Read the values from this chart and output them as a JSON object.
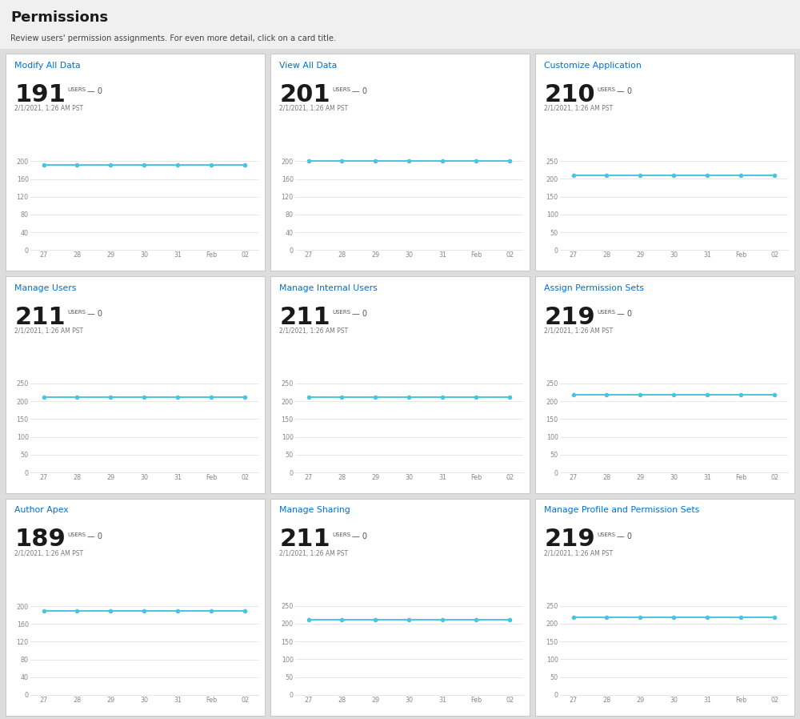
{
  "title": "Permissions",
  "subtitle": "Review users' permission assignments. For even more detail, click on a card title.",
  "header_bg": "#f0f0f0",
  "card_bg": "#ffffff",
  "dashboard_bg": "#dddddd",
  "title_color": "#1a1a1a",
  "subtitle_color": "#444444",
  "card_title_color": "#0070d2",
  "big_num_color": "#1a1a1a",
  "users_label_color": "#555555",
  "date_color": "#777777",
  "line_color": "#4bc4e0",
  "tick_color": "#888888",
  "grid_color": "#e0e0e0",
  "cards": [
    {
      "title": "Modify All Data",
      "value": "191",
      "change": "0",
      "date": "2/1/2021, 1:26 AM PST",
      "y_values": [
        191,
        191,
        191,
        191,
        191,
        191,
        191
      ],
      "y_ticks": [
        0,
        40,
        80,
        120,
        160,
        200
      ],
      "y_min": 0,
      "y_max": 215
    },
    {
      "title": "View All Data",
      "value": "201",
      "change": "0",
      "date": "2/1/2021, 1:26 AM PST",
      "y_values": [
        201,
        201,
        201,
        201,
        201,
        201,
        201
      ],
      "y_ticks": [
        0,
        40,
        80,
        120,
        160,
        200
      ],
      "y_min": 0,
      "y_max": 215
    },
    {
      "title": "Customize Application",
      "value": "210",
      "change": "0",
      "date": "2/1/2021, 1:26 AM PST",
      "y_values": [
        210,
        210,
        210,
        210,
        210,
        210,
        210
      ],
      "y_ticks": [
        0,
        50,
        100,
        150,
        200,
        250
      ],
      "y_min": 0,
      "y_max": 268
    },
    {
      "title": "Manage Users",
      "value": "211",
      "change": "0",
      "date": "2/1/2021, 1:26 AM PST",
      "y_values": [
        211,
        211,
        211,
        211,
        211,
        211,
        211
      ],
      "y_ticks": [
        0,
        50,
        100,
        150,
        200,
        250
      ],
      "y_min": 0,
      "y_max": 268
    },
    {
      "title": "Manage Internal Users",
      "value": "211",
      "change": "0",
      "date": "2/1/2021, 1:26 AM PST",
      "y_values": [
        211,
        211,
        211,
        211,
        211,
        211,
        211
      ],
      "y_ticks": [
        0,
        50,
        100,
        150,
        200,
        250
      ],
      "y_min": 0,
      "y_max": 268
    },
    {
      "title": "Assign Permission Sets",
      "value": "219",
      "change": "0",
      "date": "2/1/2021, 1:26 AM PST",
      "y_values": [
        219,
        219,
        219,
        219,
        219,
        219,
        219
      ],
      "y_ticks": [
        0,
        50,
        100,
        150,
        200,
        250
      ],
      "y_min": 0,
      "y_max": 268
    },
    {
      "title": "Author Apex",
      "value": "189",
      "change": "0",
      "date": "2/1/2021, 1:26 AM PST",
      "y_values": [
        189,
        189,
        189,
        189,
        189,
        189,
        189
      ],
      "y_ticks": [
        0,
        40,
        80,
        120,
        160,
        200
      ],
      "y_min": 0,
      "y_max": 215
    },
    {
      "title": "Manage Sharing",
      "value": "211",
      "change": "0",
      "date": "2/1/2021, 1:26 AM PST",
      "y_values": [
        211,
        211,
        211,
        211,
        211,
        211,
        211
      ],
      "y_ticks": [
        0,
        50,
        100,
        150,
        200,
        250
      ],
      "y_min": 0,
      "y_max": 268
    },
    {
      "title": "Manage Profile and Permission Sets",
      "value": "219",
      "change": "0",
      "date": "2/1/2021, 1:26 AM PST",
      "y_values": [
        219,
        219,
        219,
        219,
        219,
        219,
        219
      ],
      "y_ticks": [
        0,
        50,
        100,
        150,
        200,
        250
      ],
      "y_min": 0,
      "y_max": 268
    }
  ],
  "x_labels": [
    "27",
    "28",
    "29",
    "30",
    "31",
    "Feb",
    "02"
  ],
  "x_values": [
    0,
    1,
    2,
    3,
    4,
    5,
    6
  ]
}
